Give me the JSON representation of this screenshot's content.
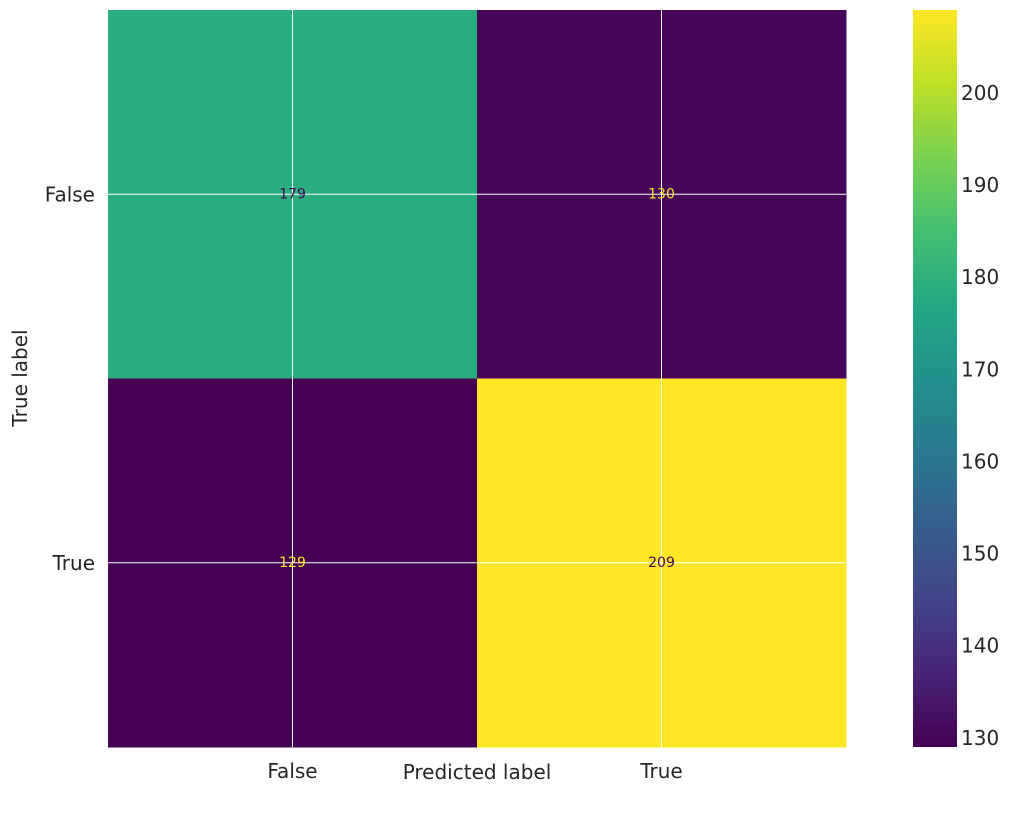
{
  "chart_data": {
    "type": "heatmap",
    "title": "",
    "xlabel": "Predicted label",
    "ylabel": "True label",
    "x_categories": [
      "False",
      "True"
    ],
    "y_categories": [
      "False",
      "True"
    ],
    "values": [
      [
        179,
        130
      ],
      [
        129,
        209
      ]
    ],
    "colormap": "viridis",
    "colorbar": {
      "min": 129,
      "max": 209,
      "ticks": [
        130,
        140,
        150,
        160,
        170,
        180,
        190,
        200
      ]
    },
    "grid": true,
    "colors": {
      "low_text": "#fde725",
      "high_text": "#440154",
      "grid": "#ffffff"
    }
  }
}
